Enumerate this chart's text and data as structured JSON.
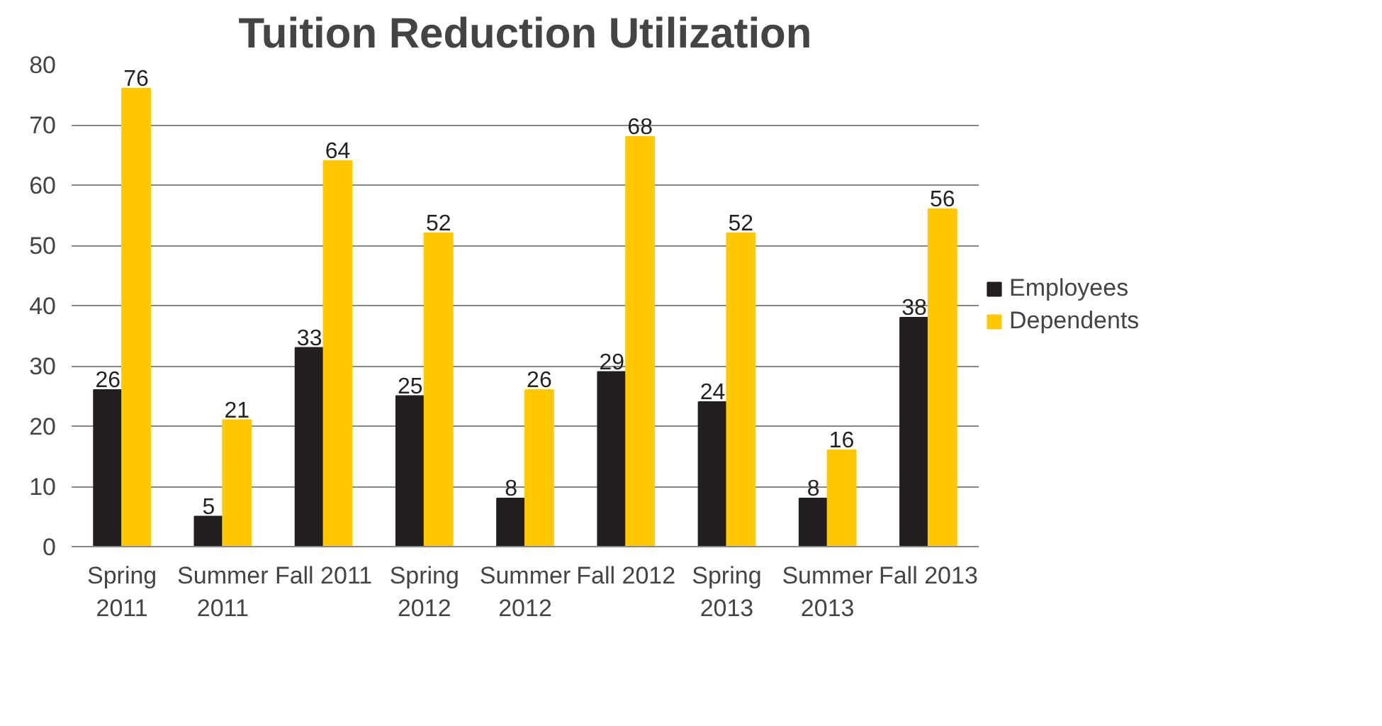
{
  "chart_data": {
    "type": "bar",
    "title": "Tuition Reduction Utilization",
    "categories": [
      "Spring 2011",
      "Summer 2011",
      "Fall 2011",
      "Spring 2012",
      "Summer 2012",
      "Fall 2012",
      "Spring 2013",
      "Summer 2013",
      "Fall 2013"
    ],
    "series": [
      {
        "name": "Employees",
        "color": "#231f20",
        "values": [
          26,
          5,
          33,
          25,
          8,
          29,
          24,
          8,
          38
        ]
      },
      {
        "name": "Dependents",
        "color": "#ffc800",
        "values": [
          76,
          21,
          64,
          52,
          26,
          68,
          52,
          16,
          56
        ]
      }
    ],
    "ylim": [
      0,
      80
    ],
    "yticks": [
      0,
      10,
      20,
      30,
      40,
      50,
      60,
      70,
      80
    ],
    "grid": "y",
    "legend": "right",
    "data_labels": true
  }
}
